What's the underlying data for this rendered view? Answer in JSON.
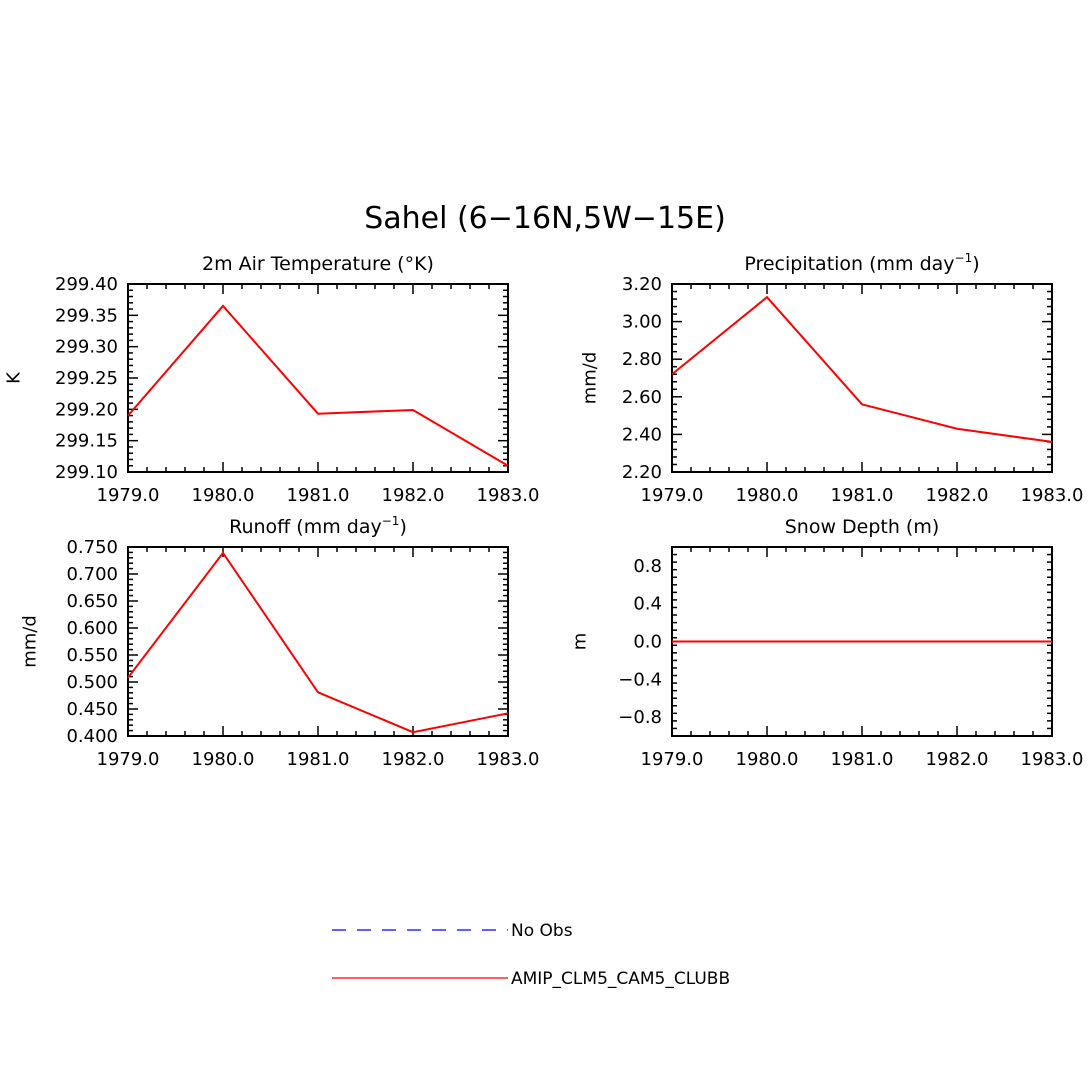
{
  "figure": {
    "title": "Sahel (6−16N,5W−15E)"
  },
  "legend": {
    "items": [
      {
        "label": "No Obs",
        "color": "#0000ff",
        "dashed": true
      },
      {
        "label": "AMIP_CLM5_CAM5_CLUBB",
        "color": "#ff0000",
        "dashed": false
      }
    ]
  },
  "chart_data": [
    {
      "type": "line",
      "title": "2m Air Temperature (°K)",
      "ylabel": "K",
      "xlim": [
        1979,
        1983
      ],
      "ylim": [
        299.1,
        299.4
      ],
      "x_ticks": [
        "1979.0",
        "1980.0",
        "1981.0",
        "1982.0",
        "1983.0"
      ],
      "y_ticks": [
        "299.10",
        "299.15",
        "299.20",
        "299.25",
        "299.30",
        "299.35",
        "299.40"
      ],
      "series": [
        {
          "name": "AMIP_CLM5_CAM5_CLUBB",
          "color": "#ff0000",
          "x": [
            1979,
            1980,
            1981,
            1982,
            1983
          ],
          "y": [
            299.19,
            299.365,
            299.193,
            299.199,
            299.11
          ]
        }
      ]
    },
    {
      "type": "line",
      "title": "Precipitation (mm day",
      "title_sup": "−1",
      "title_end": ")",
      "ylabel": "mm/d",
      "xlim": [
        1979,
        1983
      ],
      "ylim": [
        2.2,
        3.2
      ],
      "x_ticks": [
        "1979.0",
        "1980.0",
        "1981.0",
        "1982.0",
        "1983.0"
      ],
      "y_ticks": [
        "2.20",
        "2.40",
        "2.60",
        "2.80",
        "3.00",
        "3.20"
      ],
      "series": [
        {
          "name": "AMIP_CLM5_CAM5_CLUBB",
          "color": "#ff0000",
          "x": [
            1979,
            1980,
            1981,
            1982,
            1983
          ],
          "y": [
            2.72,
            3.13,
            2.56,
            2.43,
            2.36
          ]
        }
      ]
    },
    {
      "type": "line",
      "title": "Runoff (mm day",
      "title_sup": "−1",
      "title_end": ")",
      "ylabel": "mm/d",
      "xlim": [
        1979,
        1983
      ],
      "ylim": [
        0.4,
        0.75
      ],
      "x_ticks": [
        "1979.0",
        "1980.0",
        "1981.0",
        "1982.0",
        "1983.0"
      ],
      "y_ticks": [
        "0.400",
        "0.450",
        "0.500",
        "0.550",
        "0.600",
        "0.650",
        "0.700",
        "0.750"
      ],
      "series": [
        {
          "name": "AMIP_CLM5_CAM5_CLUBB",
          "color": "#ff0000",
          "x": [
            1979,
            1980,
            1981,
            1982,
            1983
          ],
          "y": [
            0.508,
            0.739,
            0.481,
            0.407,
            0.442
          ]
        }
      ]
    },
    {
      "type": "line",
      "title": "Snow Depth (m)",
      "ylabel": "m",
      "xlim": [
        1979,
        1983
      ],
      "ylim": [
        -1.0,
        1.0
      ],
      "x_ticks": [
        "1979.0",
        "1980.0",
        "1981.0",
        "1982.0",
        "1983.0"
      ],
      "y_ticks": [
        "−0.8",
        "−0.4",
        "0.0",
        "0.4",
        "0.8"
      ],
      "y_tick_values": [
        -0.8,
        -0.4,
        0.0,
        0.4,
        0.8
      ],
      "series": [
        {
          "name": "AMIP_CLM5_CAM5_CLUBB",
          "color": "#ff0000",
          "x": [
            1979,
            1980,
            1981,
            1982,
            1983
          ],
          "y": [
            0,
            0,
            0,
            0,
            0
          ]
        }
      ]
    }
  ]
}
